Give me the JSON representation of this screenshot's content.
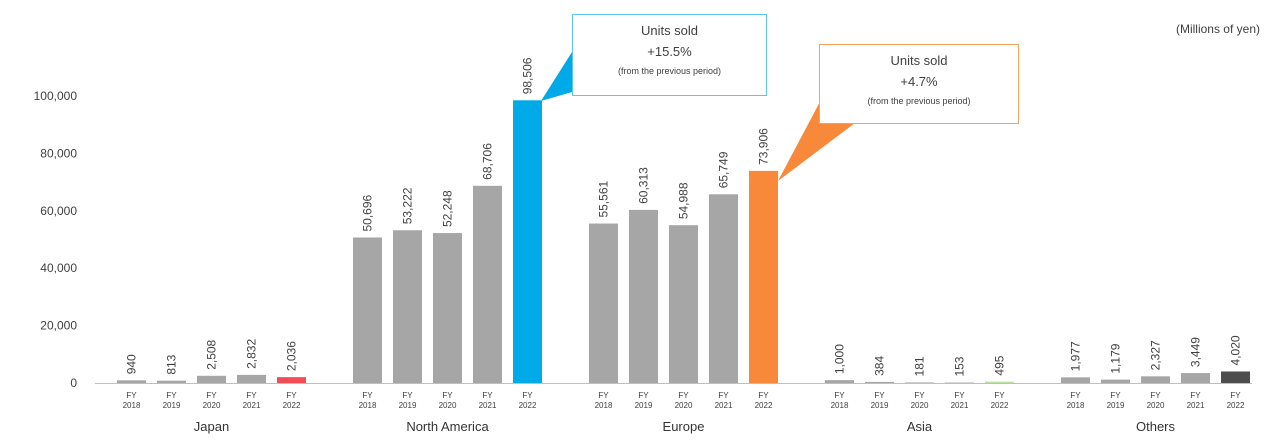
{
  "unit_note": "(Millions of yen)",
  "callouts": [
    {
      "line1": "Units sold",
      "line2": "+15.5%",
      "line3": "(from the previous period)",
      "color": "#5cc6ee"
    },
    {
      "line1": "Units sold",
      "line2": "+4.7%",
      "line3": "(from the previous period)",
      "color": "#f7a25c"
    }
  ],
  "colors": {
    "default_bar": "#a6a6a6",
    "japan_2022": "#f04e54",
    "north_america_2022": "#00a9e8",
    "europe_2022": "#f9893a",
    "asia_2022": "#b9e4a6",
    "others_2022": "#4d4d4d"
  },
  "chart_data": {
    "type": "bar",
    "ylim": [
      0,
      100000
    ],
    "y_ticks": [
      "0",
      "20,000",
      "40,000",
      "60,000",
      "80,000",
      "100,000"
    ],
    "y_tick_values": [
      0,
      20000,
      40000,
      60000,
      80000,
      100000
    ],
    "x_tick_labels": [
      [
        "FY",
        "2018"
      ],
      [
        "FY",
        "2019"
      ],
      [
        "FY",
        "2020"
      ],
      [
        "FY",
        "2021"
      ],
      [
        "FY",
        "2022"
      ]
    ],
    "groups": [
      {
        "name": "Japan",
        "values": [
          940,
          813,
          2508,
          2832,
          2036
        ],
        "labels": [
          "940",
          "813",
          "2,508",
          "2,832",
          "2,036"
        ],
        "highlight_color": "#f04e54"
      },
      {
        "name": "North America",
        "values": [
          50696,
          53222,
          52248,
          68706,
          98506
        ],
        "labels": [
          "50,696",
          "53,222",
          "52,248",
          "68,706",
          "98,506"
        ],
        "highlight_color": "#00a9e8"
      },
      {
        "name": "Europe",
        "values": [
          55561,
          60313,
          54988,
          65749,
          73906
        ],
        "labels": [
          "55,561",
          "60,313",
          "54,988",
          "65,749",
          "73,906"
        ],
        "highlight_color": "#f9893a"
      },
      {
        "name": "Asia",
        "values": [
          1000,
          384,
          181,
          153,
          495
        ],
        "labels": [
          "1,000",
          "384",
          "181",
          "153",
          "495"
        ],
        "highlight_color": "#b9e4a6"
      },
      {
        "name": "Others",
        "values": [
          1977,
          1179,
          2327,
          3449,
          4020
        ],
        "labels": [
          "1,977",
          "1,179",
          "2,327",
          "3,449",
          "4,020"
        ],
        "highlight_color": "#4d4d4d"
      }
    ]
  }
}
